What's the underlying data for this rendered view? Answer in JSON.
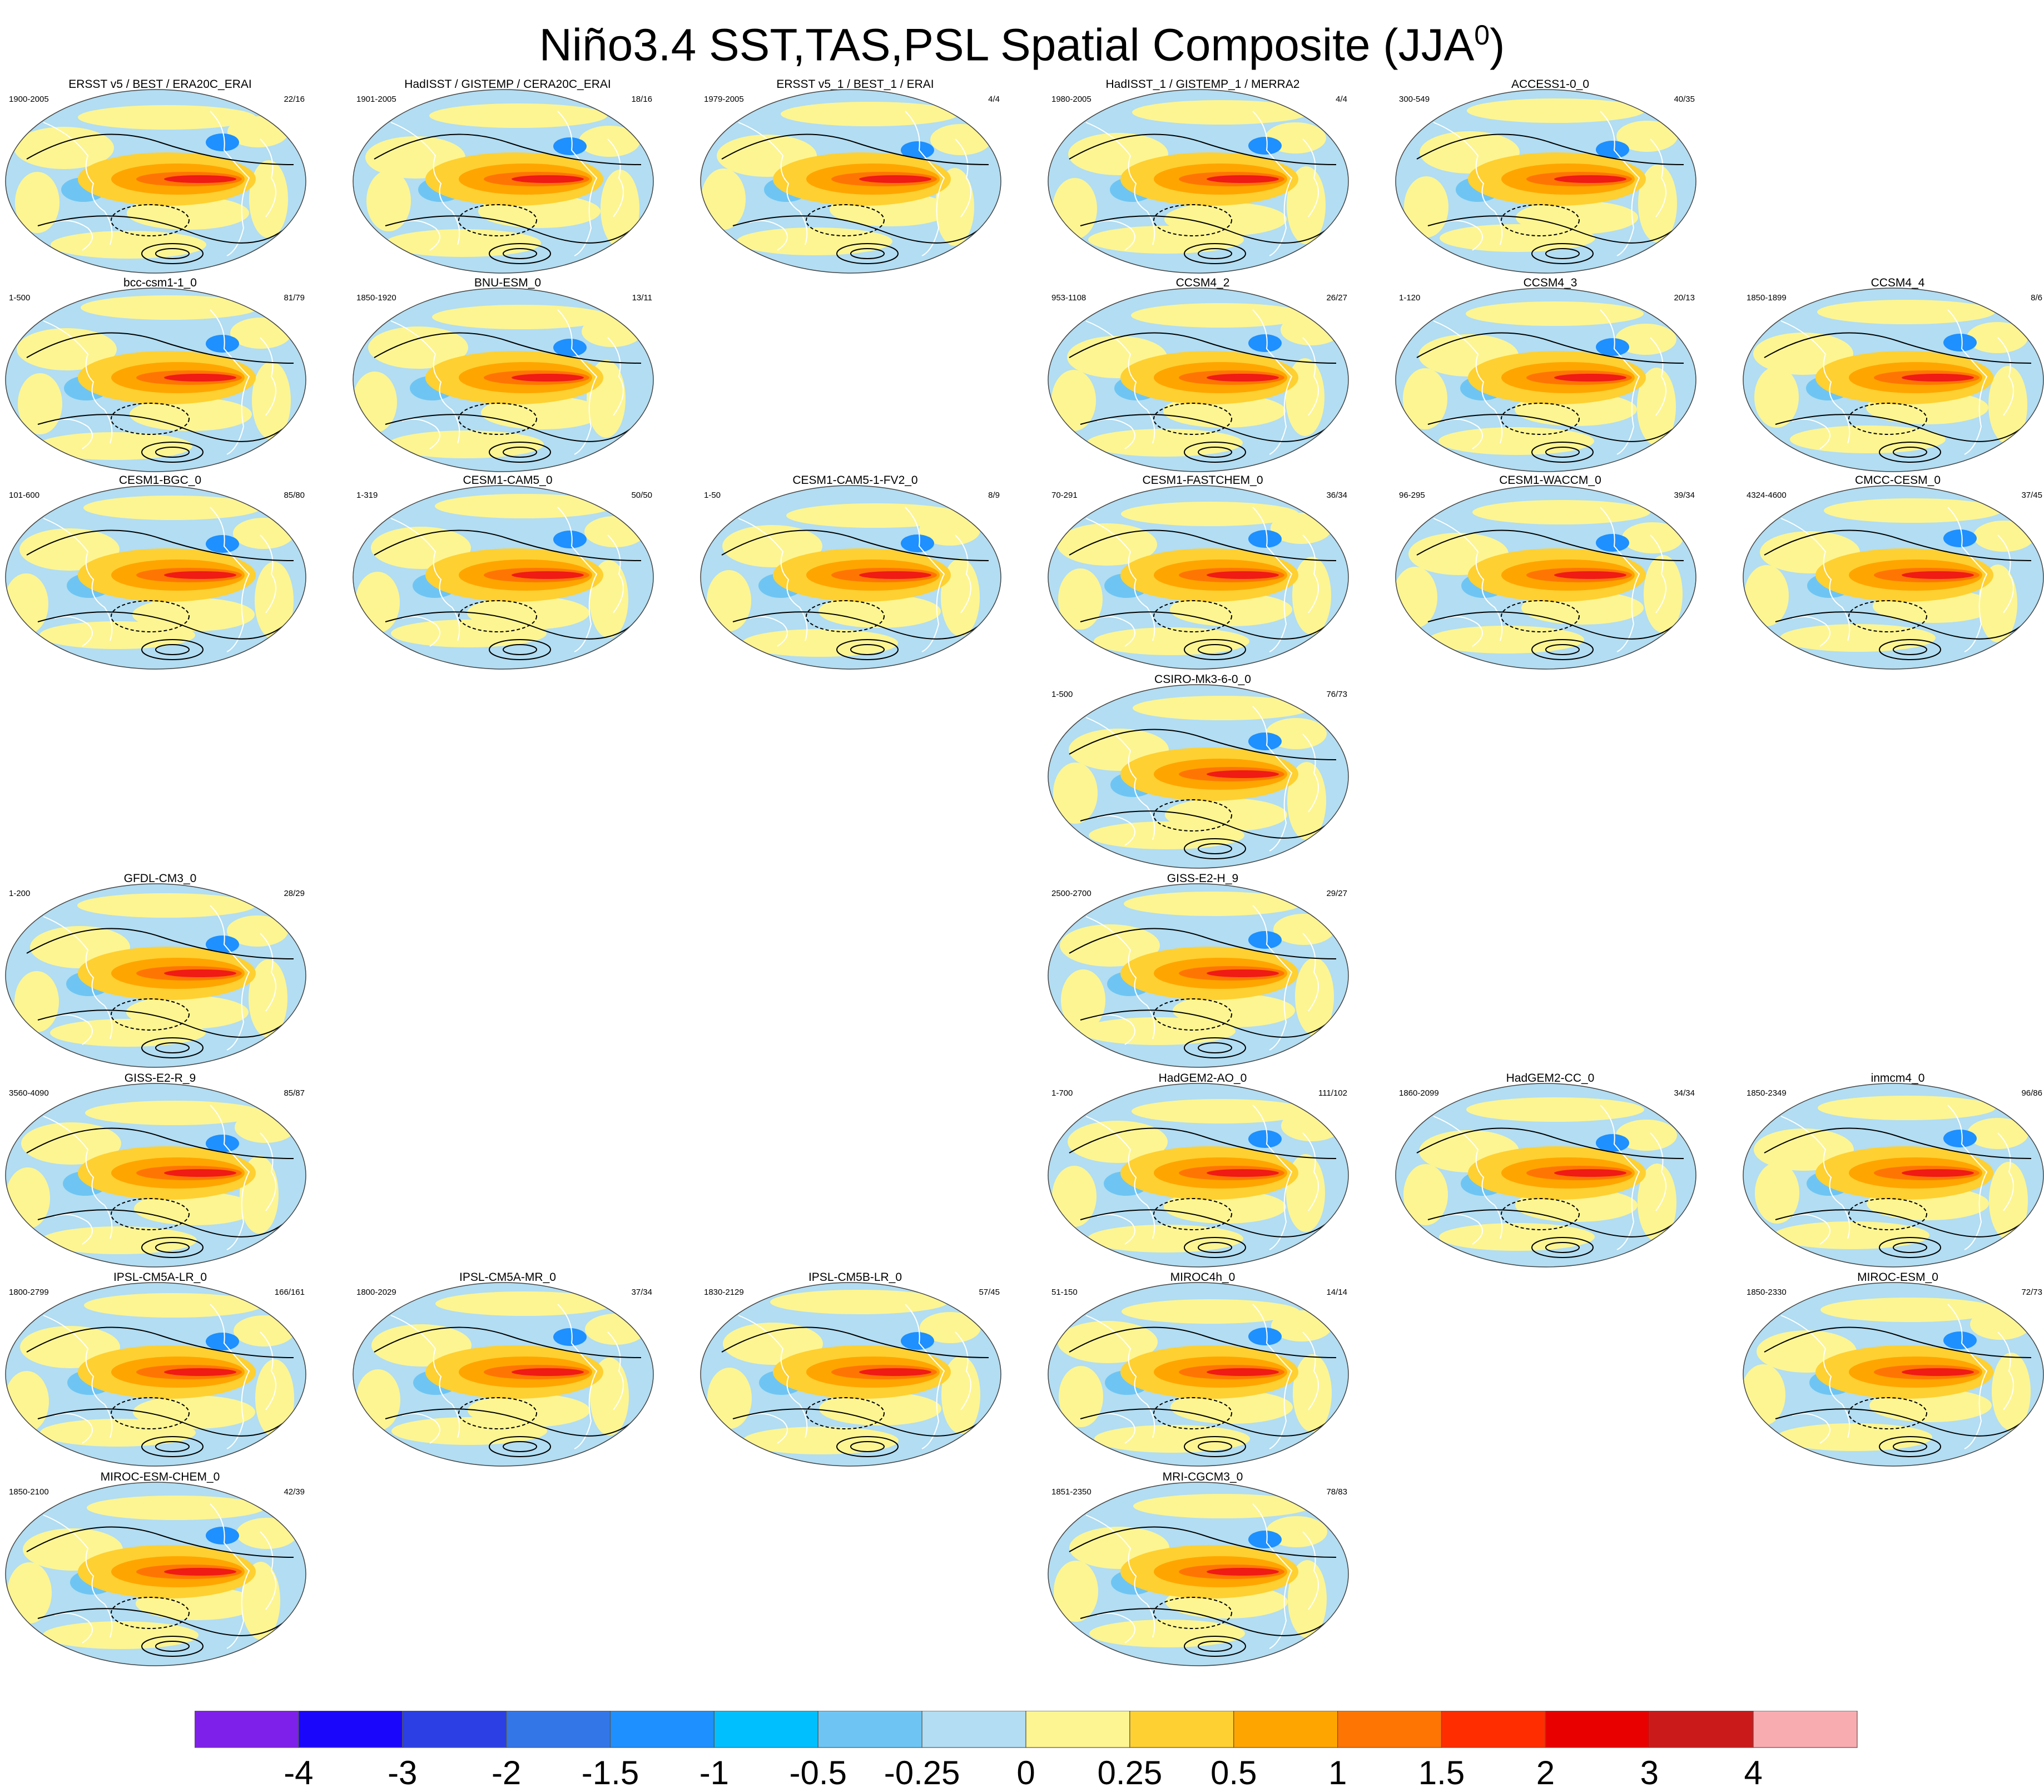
{
  "title": {
    "main": "Niño3.4 SST,TAS,PSL Spatial Composite (JJA",
    "superscript": "0",
    "close": ")"
  },
  "map_colors": {
    "ocean_neutral": "#b2ddf2",
    "warm_light": "#fdf592",
    "warm_mid": "#fed031",
    "warm_orange": "#ffa500",
    "hot": "#ef1b14",
    "cold": "#1e90ff",
    "coast": "#ffffff",
    "contour": "#000000"
  },
  "panels": [
    {
      "title": "ERSST v5 / BEST / ERA20C_ERAI",
      "years": "1900-2005",
      "count": "22/16",
      "row": 0,
      "col": 0
    },
    {
      "title": "HadISST / GISTEMP / CERA20C_ERAI",
      "years": "1901-2005",
      "count": "18/16",
      "row": 0,
      "col": 1
    },
    {
      "title": "ERSST v5_1 / BEST_1 / ERAI",
      "years": "1979-2005",
      "count": "4/4",
      "row": 0,
      "col": 2
    },
    {
      "title": "HadISST_1 / GISTEMP_1 / MERRA2",
      "years": "1980-2005",
      "count": "4/4",
      "row": 0,
      "col": 3
    },
    {
      "title": "ACCESS1-0_0",
      "years": "300-549",
      "count": "40/35",
      "row": 0,
      "col": 4
    },
    {
      "title": "bcc-csm1-1_0",
      "years": "1-500",
      "count": "81/79",
      "row": 1,
      "col": 0
    },
    {
      "title": "BNU-ESM_0",
      "years": "1850-1920",
      "count": "13/11",
      "row": 1,
      "col": 1
    },
    {
      "title": "CCSM4_2",
      "years": "953-1108",
      "count": "26/27",
      "row": 1,
      "col": 3
    },
    {
      "title": "CCSM4_3",
      "years": "1-120",
      "count": "20/13",
      "row": 1,
      "col": 4
    },
    {
      "title": "CCSM4_4",
      "years": "1850-1899",
      "count": "8/6",
      "row": 1,
      "col": 5
    },
    {
      "title": "CESM1-BGC_0",
      "years": "101-600",
      "count": "85/80",
      "row": 2,
      "col": 0
    },
    {
      "title": "CESM1-CAM5_0",
      "years": "1-319",
      "count": "50/50",
      "row": 2,
      "col": 1
    },
    {
      "title": "CESM1-CAM5-1-FV2_0",
      "years": "1-50",
      "count": "8/9",
      "row": 2,
      "col": 2
    },
    {
      "title": "CESM1-FASTCHEM_0",
      "years": "70-291",
      "count": "36/34",
      "row": 2,
      "col": 3
    },
    {
      "title": "CESM1-WACCM_0",
      "years": "96-295",
      "count": "39/34",
      "row": 2,
      "col": 4
    },
    {
      "title": "CMCC-CESM_0",
      "years": "4324-4600",
      "count": "37/45",
      "row": 2,
      "col": 5
    },
    {
      "title": "CSIRO-Mk3-6-0_0",
      "years": "1-500",
      "count": "76/73",
      "row": 3,
      "col": 3
    },
    {
      "title": "GFDL-CM3_0",
      "years": "1-200",
      "count": "28/29",
      "row": 4,
      "col": 0
    },
    {
      "title": "GISS-E2-H_9",
      "years": "2500-2700",
      "count": "29/27",
      "row": 4,
      "col": 3
    },
    {
      "title": "GISS-E2-R_9",
      "years": "3560-4090",
      "count": "85/87",
      "row": 5,
      "col": 0
    },
    {
      "title": "HadGEM2-AO_0",
      "years": "1-700",
      "count": "111/102",
      "row": 5,
      "col": 3
    },
    {
      "title": "HadGEM2-CC_0",
      "years": "1860-2099",
      "count": "34/34",
      "row": 5,
      "col": 4
    },
    {
      "title": "inmcm4_0",
      "years": "1850-2349",
      "count": "96/86",
      "row": 5,
      "col": 5
    },
    {
      "title": "IPSL-CM5A-LR_0",
      "years": "1800-2799",
      "count": "166/161",
      "row": 6,
      "col": 0
    },
    {
      "title": "IPSL-CM5A-MR_0",
      "years": "1800-2029",
      "count": "37/34",
      "row": 6,
      "col": 1
    },
    {
      "title": "IPSL-CM5B-LR_0",
      "years": "1830-2129",
      "count": "57/45",
      "row": 6,
      "col": 2
    },
    {
      "title": "MIROC4h_0",
      "years": "51-150",
      "count": "14/14",
      "row": 6,
      "col": 3
    },
    {
      "title": "MIROC-ESM_0",
      "years": "1850-2330",
      "count": "72/73",
      "row": 6,
      "col": 5
    },
    {
      "title": "MIROC-ESM-CHEM_0",
      "years": "1850-2100",
      "count": "42/39",
      "row": 7,
      "col": 0
    },
    {
      "title": "MRI-CGCM3_0",
      "years": "1851-2350",
      "count": "78/83",
      "row": 7,
      "col": 3
    }
  ],
  "chart_data": {
    "type": "heatmap",
    "title": "Niño3.4 SST,TAS,PSL Spatial Composite (JJA0)",
    "projection": "robinson",
    "layout": "8 rows x 6 columns, 30 panels",
    "colorbar": {
      "colors": [
        "#7f1fea",
        "#1a06fb",
        "#2b3fe5",
        "#3376e8",
        "#1e90ff",
        "#00bfff",
        "#6ec5f3",
        "#b2ddf2",
        "#fdf592",
        "#fed031",
        "#ffa500",
        "#ff7503",
        "#ff2d00",
        "#e80000",
        "#ca1a1a",
        "#f9acb0"
      ],
      "tick_labels": [
        "-4",
        "-3",
        "-2",
        "-1.5",
        "-1",
        "-0.5",
        "-0.25",
        "0",
        "0.25",
        "0.5",
        "1",
        "1.5",
        "2",
        "3",
        "4"
      ]
    },
    "contours": "PSL anomalies: solid positive, dashed negative"
  }
}
